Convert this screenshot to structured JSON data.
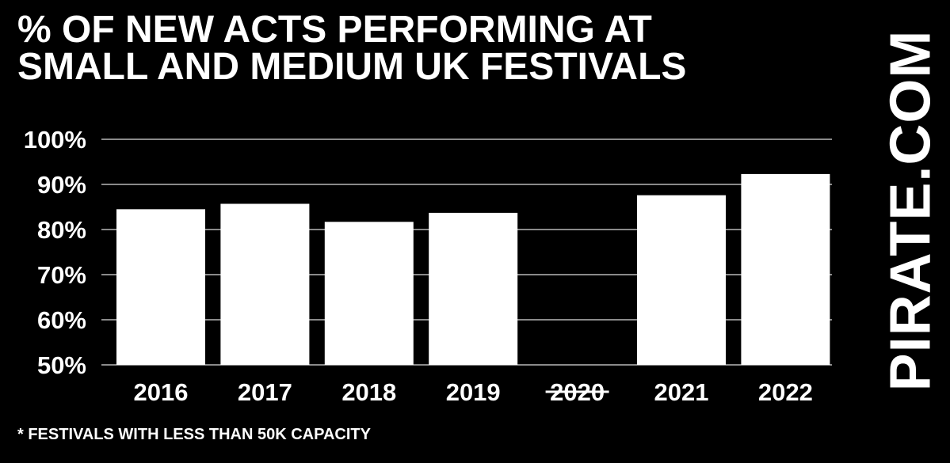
{
  "title_lines": [
    "% OF NEW ACTS PERFORMING AT",
    "SMALL AND MEDIUM UK FESTIVALS"
  ],
  "brand": "PIRATE.COM",
  "footnote": "* FESTIVALS WITH LESS THAN 50K CAPACITY",
  "colors": {
    "background": "#000000",
    "bar": "#ffffff",
    "text": "#ffffff",
    "grid": "#8a8a8a"
  },
  "chart_data": {
    "type": "bar",
    "title": "% OF NEW ACTS PERFORMING AT SMALL AND MEDIUM UK FESTIVALS",
    "xlabel": "",
    "ylabel": "",
    "categories": [
      "2016",
      "2017",
      "2018",
      "2019",
      "2020",
      "2021",
      "2022"
    ],
    "struck_categories": [
      "2020"
    ],
    "values": [
      84.5,
      85.7,
      81.7,
      83.7,
      null,
      87.6,
      92.3
    ],
    "yticks": [
      100,
      90,
      80,
      70,
      60,
      50
    ],
    "ytick_labels": [
      "100%",
      "90%",
      "80%",
      "70%",
      "60%",
      "50%"
    ],
    "ylim": [
      50,
      100
    ],
    "grid": true,
    "legend": "none"
  }
}
